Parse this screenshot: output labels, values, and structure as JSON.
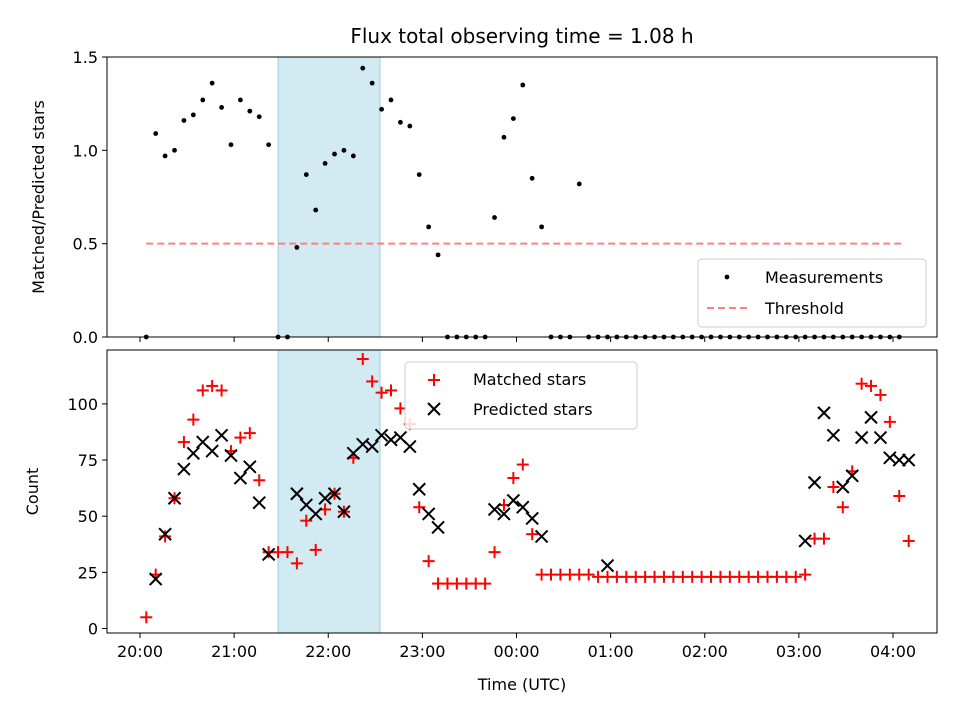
{
  "colors": {
    "shade": "#add8e6",
    "matched": "#ff0000",
    "predicted": "#000000",
    "threshold": "#ff8080",
    "measurement": "#000000"
  },
  "chart_data": [
    {
      "type": "scatter",
      "title": "Flux total observing time = 1.08 h",
      "xlabel": "",
      "ylabel": "Matched/Predicted stars",
      "xlim": [
        "19:40",
        "04:33"
      ],
      "ylim": [
        0,
        1.5
      ],
      "yticks": [
        "0.0",
        "0.5",
        "1.0",
        "1.5"
      ],
      "shaded_interval": [
        "21:28",
        "22:33"
      ],
      "legend": {
        "placement": "lower-right",
        "entries": [
          "Measurements",
          "Threshold"
        ]
      },
      "threshold": {
        "name": "Threshold",
        "value": 0.5,
        "x_range": [
          "20:04",
          "04:06"
        ]
      },
      "series": [
        {
          "name": "Measurements",
          "x": [
            "20:04",
            "20:10",
            "20:16",
            "20:22",
            "20:28",
            "20:34",
            "20:40",
            "20:46",
            "20:52",
            "20:58",
            "21:04",
            "21:10",
            "21:16",
            "21:22",
            "21:28",
            "21:34",
            "21:40",
            "21:46",
            "21:52",
            "21:58",
            "22:04",
            "22:10",
            "22:16",
            "22:22",
            "22:28",
            "22:34",
            "22:40",
            "22:46",
            "22:52",
            "22:58",
            "23:04",
            "23:10",
            "23:16",
            "23:22",
            "23:28",
            "23:34",
            "23:40",
            "23:46",
            "23:52",
            "23:58",
            "00:04",
            "00:10",
            "00:16",
            "00:22",
            "00:28",
            "00:34",
            "00:40",
            "00:46",
            "00:52",
            "00:58",
            "01:04",
            "01:10",
            "01:16",
            "01:22",
            "01:28",
            "01:34",
            "01:40",
            "01:46",
            "01:52",
            "01:58",
            "02:04",
            "02:10",
            "02:16",
            "02:22",
            "02:28",
            "02:34",
            "02:40",
            "02:46",
            "02:52",
            "02:58",
            "03:04",
            "03:10",
            "03:16",
            "03:22",
            "03:28",
            "03:34",
            "03:40",
            "03:46",
            "03:52",
            "03:58",
            "04:04"
          ],
          "y": [
            0.0,
            1.09,
            0.97,
            1.0,
            1.16,
            1.19,
            1.27,
            1.36,
            1.23,
            1.03,
            1.27,
            1.21,
            1.18,
            1.03,
            0.0,
            0.0,
            0.48,
            0.87,
            0.68,
            0.93,
            0.98,
            1.0,
            0.97,
            1.44,
            1.36,
            1.22,
            1.27,
            1.15,
            1.13,
            0.87,
            0.59,
            0.44,
            0.0,
            0.0,
            0.0,
            0.0,
            0.0,
            0.64,
            1.07,
            1.17,
            1.35,
            0.85,
            0.59,
            0.0,
            0.0,
            0.0,
            0.82,
            0.0,
            0.0,
            0.0,
            0.0,
            0.0,
            0.0,
            0.0,
            0.0,
            0.0,
            0.0,
            0.0,
            0.0,
            0.0,
            0.0,
            0.0,
            0.0,
            0.0,
            0.0,
            0.0,
            0.0,
            0.0,
            0.0,
            0.0,
            0.0,
            0.0,
            0.0,
            0.0,
            0.0,
            0.0,
            0.0,
            0.0,
            0.0,
            0.0,
            0.0
          ]
        }
      ]
    },
    {
      "type": "scatter",
      "xlabel": "Time (UTC)",
      "ylabel": "Count",
      "xlim": [
        "19:40",
        "04:33"
      ],
      "ylim": [
        -2,
        124
      ],
      "yticks": [
        "0",
        "25",
        "50",
        "75",
        "100"
      ],
      "xticks": [
        "20:00",
        "21:00",
        "22:00",
        "23:00",
        "00:00",
        "01:00",
        "02:00",
        "03:00",
        "04:00"
      ],
      "shaded_interval": [
        "21:28",
        "22:33"
      ],
      "legend": {
        "placement": "upper-center",
        "entries": [
          "Matched stars",
          "Predicted stars"
        ]
      },
      "series": [
        {
          "name": "Matched stars",
          "x": [],
          "y": []
        },
        {
          "name": "Predicted stars",
          "x": [],
          "y": []
        }
      ]
    }
  ]
}
